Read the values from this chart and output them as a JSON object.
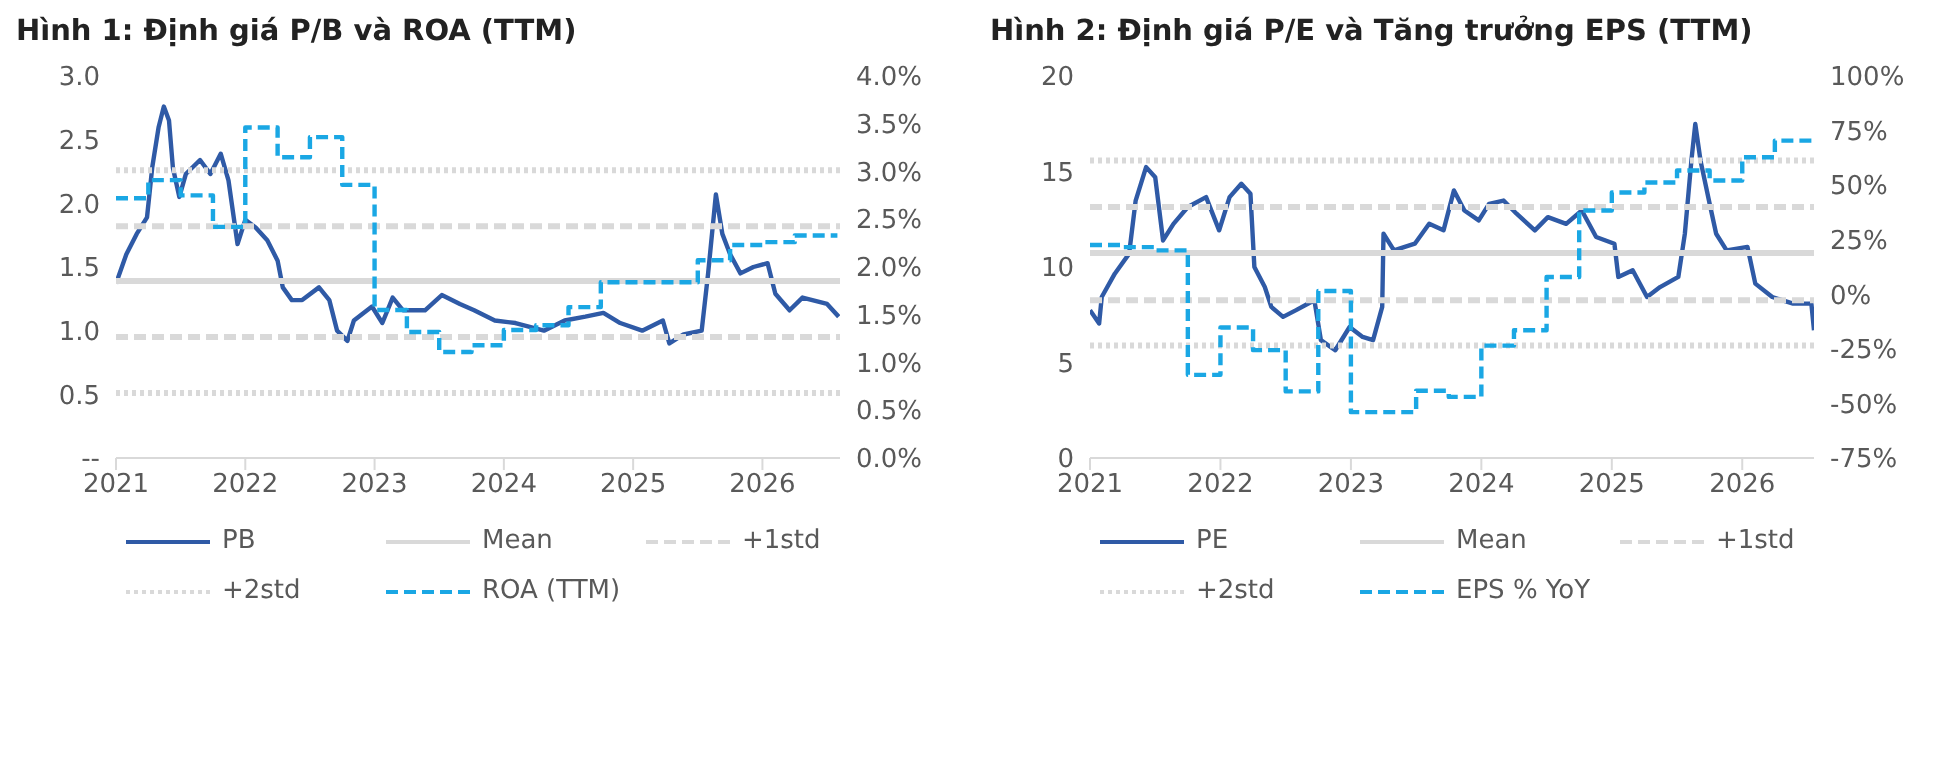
{
  "chart_data": [
    {
      "type": "line",
      "title": "Hình 1: Định giá P/B và ROA (TTM)",
      "legend": "bottom",
      "xlim": [
        2021,
        2026.6
      ],
      "xticks": [
        2021,
        2022,
        2023,
        2024,
        2025,
        2026
      ],
      "ylim": [
        0,
        3
      ],
      "yticks": [
        {
          "value": 0,
          "label": "--"
        },
        0.5,
        {
          "value": 1,
          "label": "1.0"
        },
        1.5,
        {
          "value": 2,
          "label": "2.0"
        },
        2.5,
        {
          "value": 3,
          "label": "3.0"
        }
      ],
      "y2lim": [
        0,
        4
      ],
      "y2ticks": [
        {
          "value": 0,
          "label": "0.0%"
        },
        {
          "value": 0.5,
          "label": "0.5%"
        },
        {
          "value": 1,
          "label": "1.0%"
        },
        {
          "value": 1.5,
          "label": "1.5%"
        },
        {
          "value": 2,
          "label": "2.0%"
        },
        {
          "value": 2.5,
          "label": "2.5%"
        },
        {
          "value": 3,
          "label": "3.0%"
        },
        {
          "value": 3.5,
          "label": "3.5%"
        },
        {
          "value": 4,
          "label": "4.0%"
        }
      ],
      "series": [
        {
          "name": "PB",
          "color": "#2f5aa6",
          "line_style": "solid",
          "x": [
            2021,
            2021.08,
            2021.16,
            2021.24,
            2021.28,
            2021.33,
            2021.37,
            2021.41,
            2021.44,
            2021.49,
            2021.54,
            2021.65,
            2021.73,
            2021.81,
            2021.87,
            2021.94,
            2022.0,
            2022.08,
            2022.17,
            2022.25,
            2022.29,
            2022.36,
            2022.44,
            2022.57,
            2022.65,
            2022.71,
            2022.79,
            2022.84,
            2022.98,
            2023.06,
            2023.14,
            2023.22,
            2023.39,
            2023.52,
            2023.66,
            2023.77,
            2023.93,
            2024.09,
            2024.31,
            2024.47,
            2024.63,
            2024.77,
            2024.9,
            2025.07,
            2025.23,
            2025.28,
            2025.39,
            2025.53,
            2025.58,
            2025.64,
            2025.69,
            2025.75,
            2025.83,
            2025.93,
            2026.04,
            2026.1,
            2026.21,
            2026.31,
            2026.5,
            2026.59
          ],
          "values": [
            1.37,
            1.6,
            1.76,
            1.89,
            2.28,
            2.6,
            2.76,
            2.65,
            2.28,
            2.05,
            2.23,
            2.34,
            2.23,
            2.39,
            2.18,
            1.68,
            1.87,
            1.81,
            1.71,
            1.55,
            1.34,
            1.24,
            1.24,
            1.34,
            1.24,
            1.0,
            0.92,
            1.08,
            1.19,
            1.06,
            1.26,
            1.16,
            1.16,
            1.28,
            1.21,
            1.16,
            1.08,
            1.06,
            1.0,
            1.08,
            1.11,
            1.14,
            1.06,
            1.0,
            1.08,
            0.9,
            0.97,
            1.0,
            1.45,
            2.07,
            1.76,
            1.6,
            1.45,
            1.5,
            1.53,
            1.29,
            1.16,
            1.26,
            1.21,
            1.11
          ]
        },
        {
          "name": "Mean",
          "color": "#d9d9d9",
          "line_style": "solid",
          "x": [
            2021,
            2026.6
          ],
          "values": [
            1.39,
            1.39
          ]
        },
        {
          "name": "+1std",
          "color": "#d9d9d9",
          "line_style": "dashed",
          "x": [
            2021,
            2026.6
          ],
          "values": [
            1.82,
            1.82
          ]
        },
        {
          "name": "+2std",
          "color": "#d9d9d9",
          "line_style": "dotted",
          "x": [
            2021,
            2026.6
          ],
          "values": [
            2.26,
            2.26
          ]
        },
        {
          "color": "#d9d9d9",
          "line_style": "dashed",
          "x": [
            2021,
            2026.6
          ],
          "values": [
            0.95,
            0.95
          ]
        },
        {
          "color": "#d9d9d9",
          "line_style": "dotted",
          "x": [
            2021,
            2026.6
          ],
          "values": [
            0.51,
            0.51
          ]
        },
        {
          "name": "ROA (TTM)",
          "type": "step",
          "axis": "y2",
          "color": "#1aa7e4",
          "line_style": "dashed",
          "x": [
            2021,
            2021.25,
            2021.5,
            2021.75,
            2022,
            2022.25,
            2022.5,
            2022.75,
            2023,
            2023.25,
            2023.5,
            2023.75,
            2024,
            2024.25,
            2024.5,
            2024.75,
            2025.5,
            2025.75,
            2026,
            2026.25,
            2026.58
          ],
          "values": [
            2.72,
            2.91,
            2.75,
            2.42,
            3.46,
            3.15,
            3.36,
            2.86,
            1.55,
            1.32,
            1.11,
            1.18,
            1.34,
            1.39,
            1.58,
            1.84,
            2.07,
            2.23,
            2.26,
            2.33,
            2.33
          ]
        }
      ]
    },
    {
      "type": "line",
      "title": "Hình 2: Định giá P/E và Tăng trưởng EPS (TTM)",
      "legend": "bottom",
      "xlim": [
        2021,
        2026.55
      ],
      "xticks": [
        2021,
        2022,
        2023,
        2024,
        2025,
        2026
      ],
      "ylim": [
        0,
        20
      ],
      "yticks": [
        0,
        5,
        10,
        15,
        20
      ],
      "y2lim": [
        -75,
        100
      ],
      "y2ticks": [
        {
          "value": -75,
          "label": "-75%"
        },
        {
          "value": -50,
          "label": "-50%"
        },
        {
          "value": -25,
          "label": "-25%"
        },
        {
          "value": 0,
          "label": "0%"
        },
        {
          "value": 25,
          "label": "25%"
        },
        {
          "value": 50,
          "label": "50%"
        },
        {
          "value": 75,
          "label": "75%"
        },
        {
          "value": 100,
          "label": "100%"
        }
      ],
      "series": [
        {
          "name": "PE",
          "color": "#2f5aa6",
          "line_style": "solid",
          "x": [
            2021,
            2021.07,
            2021.09,
            2021.19,
            2021.3,
            2021.35,
            2021.43,
            2021.5,
            2021.56,
            2021.64,
            2021.75,
            2021.89,
            2021.99,
            2022.07,
            2022.16,
            2022.23,
            2022.26,
            2022.34,
            2022.39,
            2022.48,
            2022.58,
            2022.72,
            2022.77,
            2022.88,
            2022.99,
            2023.09,
            2023.17,
            2023.24,
            2023.25,
            2023.33,
            2023.49,
            2023.6,
            2023.71,
            2023.79,
            2023.87,
            2023.98,
            2024.06,
            2024.17,
            2024.27,
            2024.41,
            2024.51,
            2024.65,
            2024.77,
            2024.88,
            2025.02,
            2025.05,
            2025.16,
            2025.27,
            2025.37,
            2025.51,
            2025.56,
            2025.61,
            2025.64,
            2025.68,
            2025.75,
            2025.8,
            2025.88,
            2026.04,
            2026.1,
            2026.23,
            2026.39,
            2026.53,
            2026.55
          ],
          "values": [
            7.74,
            7.04,
            8.43,
            9.65,
            10.7,
            13.48,
            15.23,
            14.7,
            11.39,
            12.26,
            13.14,
            13.66,
            11.92,
            13.66,
            14.36,
            13.83,
            10.0,
            8.95,
            7.91,
            7.39,
            7.74,
            8.26,
            6.17,
            5.64,
            6.86,
            6.34,
            6.17,
            7.91,
            11.74,
            10.87,
            11.22,
            12.26,
            11.92,
            14.01,
            12.96,
            12.44,
            13.31,
            13.48,
            12.79,
            11.92,
            12.61,
            12.26,
            12.96,
            11.57,
            11.22,
            9.48,
            9.83,
            8.43,
            8.95,
            9.48,
            11.74,
            15.57,
            17.49,
            15.57,
            13.31,
            11.74,
            10.87,
            11.05,
            9.13,
            8.43,
            8.08,
            8.08,
            6.69
          ]
        },
        {
          "name": "Mean",
          "color": "#d9d9d9",
          "line_style": "solid",
          "x": [
            2021,
            2026.55
          ],
          "values": [
            10.73,
            10.73
          ]
        },
        {
          "name": "+1std",
          "color": "#d9d9d9",
          "line_style": "dashed",
          "x": [
            2021,
            2026.55
          ],
          "values": [
            13.14,
            13.14
          ]
        },
        {
          "name": "+2std",
          "color": "#d9d9d9",
          "line_style": "dotted",
          "x": [
            2021,
            2026.55
          ],
          "values": [
            15.57,
            15.57
          ]
        },
        {
          "color": "#d9d9d9",
          "line_style": "dashed",
          "x": [
            2021,
            2026.55
          ],
          "values": [
            8.26,
            8.26
          ]
        },
        {
          "color": "#d9d9d9",
          "line_style": "dotted",
          "x": [
            2021,
            2026.55
          ],
          "values": [
            5.89,
            5.89
          ]
        },
        {
          "name": "EPS % YoY",
          "type": "step",
          "axis": "y2",
          "color": "#1aa7e4",
          "line_style": "dashed",
          "x": [
            2021,
            2021.25,
            2021.5,
            2021.75,
            2022,
            2022.25,
            2022.5,
            2022.75,
            2023,
            2023.5,
            2023.75,
            2024,
            2024.25,
            2024.5,
            2024.75,
            2025,
            2025.25,
            2025.5,
            2025.75,
            2026,
            2026.25,
            2026.55
          ],
          "values": [
            22.6,
            21.6,
            20.1,
            -36.9,
            -15.2,
            -25.6,
            -44.5,
            1.5,
            -54.0,
            -44.2,
            -47.0,
            -23.5,
            -16.5,
            7.9,
            38.4,
            46.6,
            51.2,
            56.7,
            52.1,
            62.8,
            70.4,
            70.4
          ]
        }
      ]
    }
  ]
}
